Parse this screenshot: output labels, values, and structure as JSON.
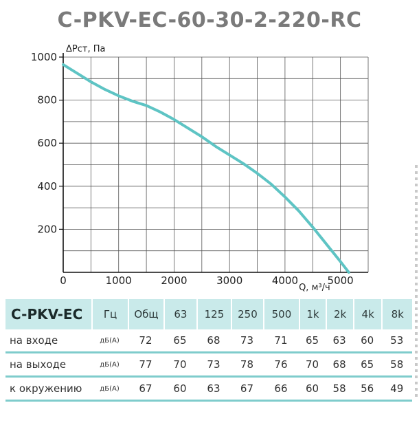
{
  "title": "C-PKV-EC-60-30-2-220-RC",
  "chart_data": {
    "type": "line",
    "ylabel": "ΔPст, Па",
    "xlabel": "Q, м³/ч",
    "xlim": [
      0,
      5500
    ],
    "ylim": [
      0,
      1000
    ],
    "x_ticks": [
      0,
      1000,
      2000,
      3000,
      4000,
      5000
    ],
    "y_ticks": [
      200,
      400,
      600,
      800,
      1000
    ],
    "x_tick_labels": [
      "0",
      "1000",
      "2000",
      "3000",
      "4000",
      "5000"
    ],
    "y_tick_labels": [
      "200",
      "400",
      "600",
      "800",
      "1000"
    ],
    "grid": true,
    "series": [
      {
        "color": "#5ec4c4",
        "x": [
          0,
          250,
          500,
          750,
          1000,
          1250,
          1500,
          1750,
          2000,
          2250,
          2500,
          2750,
          3000,
          3250,
          3500,
          3750,
          4000,
          4250,
          4500,
          4750,
          5000,
          5150
        ],
        "y": [
          965,
          925,
          885,
          850,
          820,
          795,
          775,
          745,
          710,
          670,
          630,
          585,
          545,
          505,
          460,
          410,
          350,
          285,
          210,
          130,
          50,
          0
        ]
      }
    ]
  },
  "table": {
    "model": "C-PKV-EC",
    "headers": [
      "Гц",
      "Общ",
      "63",
      "125",
      "250",
      "500",
      "1k",
      "2k",
      "4k",
      "8k"
    ],
    "rows": [
      {
        "label": "на входе",
        "unit": "дБ(А)",
        "values": [
          "72",
          "65",
          "68",
          "73",
          "71",
          "65",
          "63",
          "60",
          "53"
        ]
      },
      {
        "label": "на выходе",
        "unit": "дБ(А)",
        "values": [
          "77",
          "70",
          "73",
          "78",
          "76",
          "70",
          "68",
          "65",
          "58"
        ]
      },
      {
        "label": "к окружению",
        "unit": "дБ(А)",
        "values": [
          "67",
          "60",
          "63",
          "67",
          "66",
          "60",
          "58",
          "56",
          "49"
        ]
      }
    ]
  }
}
